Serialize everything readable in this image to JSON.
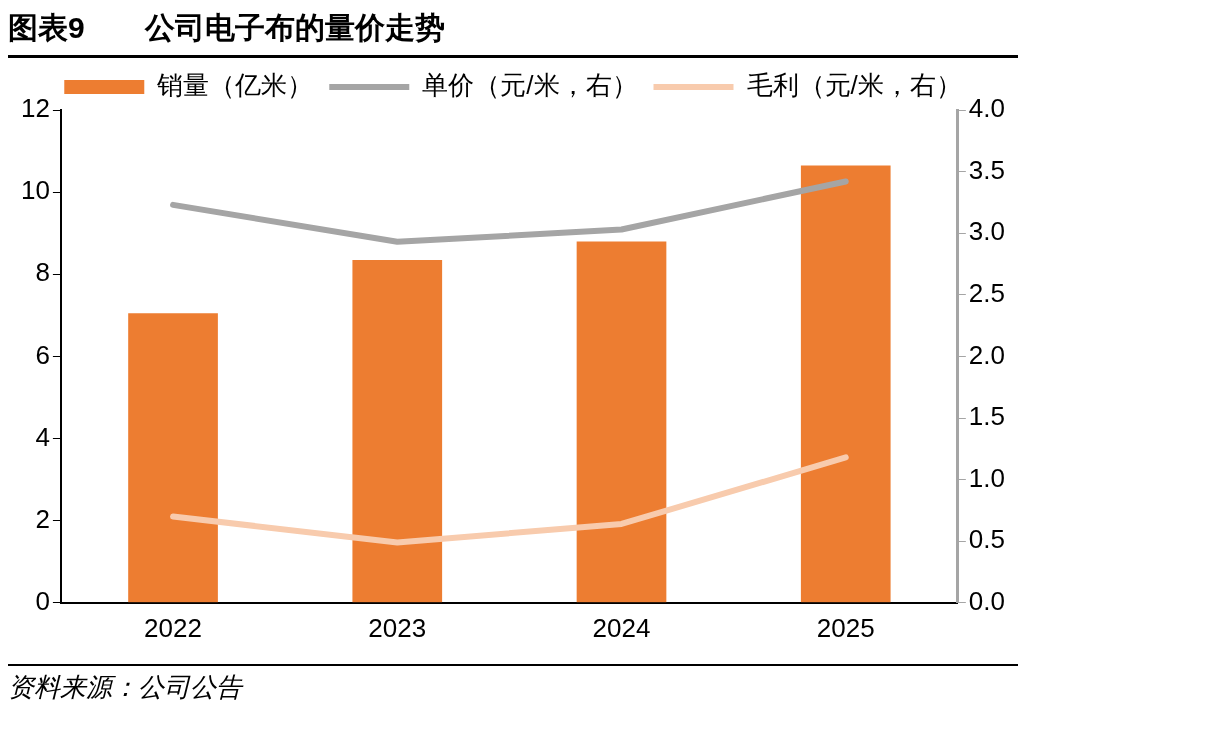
{
  "chart_data": {
    "type": "bar",
    "title": "图表9　　公司电子布的量价走势",
    "categories": [
      "2022",
      "2023",
      "2024",
      "2025"
    ],
    "series": [
      {
        "name": "销量（亿米）",
        "color": "#ed7d31",
        "values": [
          7.05,
          8.35,
          8.8,
          10.65
        ]
      },
      {
        "name": "单价（元/米，右）",
        "type": "line",
        "axis": "y2",
        "color": "#a5a5a5",
        "values": [
          3.23,
          2.93,
          3.03,
          3.42
        ]
      },
      {
        "name": "毛利（元/米，右）",
        "type": "line",
        "axis": "y2",
        "color": "#f8cbad",
        "values": [
          0.7,
          0.49,
          0.64,
          1.18
        ]
      }
    ],
    "ylim": [
      0,
      12
    ],
    "yticks": [
      0,
      2,
      4,
      6,
      8,
      10,
      12
    ],
    "y2lim": [
      0,
      4
    ],
    "y2ticks": [
      {
        "value": 0,
        "label": "0.0"
      },
      {
        "value": 0.5,
        "label": "0.5"
      },
      {
        "value": 1,
        "label": "1.0"
      },
      {
        "value": 1.5,
        "label": "1.5"
      },
      {
        "value": 2,
        "label": "2.0"
      },
      {
        "value": 2.5,
        "label": "2.5"
      },
      {
        "value": 3,
        "label": "3.0"
      },
      {
        "value": 3.5,
        "label": "3.5"
      },
      {
        "value": 4,
        "label": "4.0"
      }
    ],
    "grid": false,
    "legend": "top",
    "marker": "none",
    "line_style": "solid",
    "annotations": [
      "资料来源：公司公告"
    ]
  }
}
